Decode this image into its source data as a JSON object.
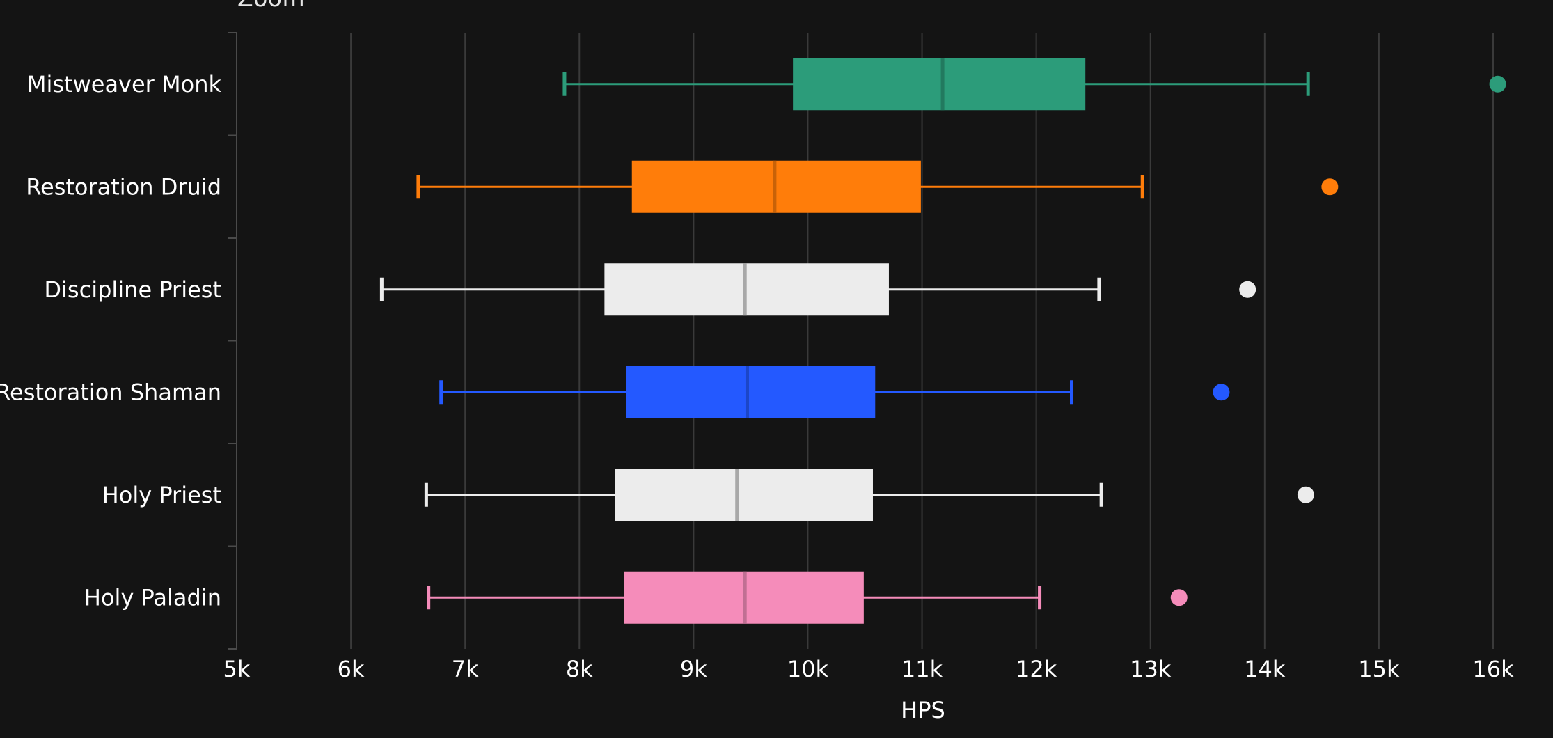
{
  "zoom_label": "Zoom",
  "chart_data": {
    "type": "boxplot",
    "orientation": "horizontal",
    "xlabel": "HPS",
    "ylabel": "",
    "xlim": [
      5000,
      16000
    ],
    "x_ticks": [
      5000,
      6000,
      7000,
      8000,
      9000,
      10000,
      11000,
      12000,
      13000,
      14000,
      15000,
      16000
    ],
    "x_tick_labels": [
      "5k",
      "6k",
      "7k",
      "8k",
      "9k",
      "10k",
      "11k",
      "12k",
      "13k",
      "14k",
      "15k",
      "16k"
    ],
    "grid": "vertical",
    "categories": [
      {
        "name": "Mistweaver Monk",
        "color": "#2c9c7a",
        "median_color": "#22795f",
        "whisker_low": 7870,
        "q1": 9870,
        "median": 11180,
        "q3": 12430,
        "whisker_high": 14380,
        "outlier": 16040
      },
      {
        "name": "Restoration Druid",
        "color": "#ff7d0a",
        "median_color": "#c86208",
        "whisker_low": 6590,
        "q1": 8460,
        "median": 9710,
        "q3": 10990,
        "whisker_high": 12930,
        "outlier": 14570
      },
      {
        "name": "Discipline Priest",
        "color": "#ececec",
        "median_color": "#a8a8a8",
        "whisker_low": 6270,
        "q1": 8220,
        "median": 9450,
        "q3": 10710,
        "whisker_high": 12550,
        "outlier": 13850
      },
      {
        "name": "Restoration Shaman",
        "color": "#2459ff",
        "median_color": "#1c46c8",
        "whisker_low": 6790,
        "q1": 8410,
        "median": 9470,
        "q3": 10590,
        "whisker_high": 12310,
        "outlier": 13620
      },
      {
        "name": "Holy Priest",
        "color": "#ececec",
        "median_color": "#a8a8a8",
        "whisker_low": 6660,
        "q1": 8310,
        "median": 9380,
        "q3": 10570,
        "whisker_high": 12570,
        "outlier": 14360
      },
      {
        "name": "Holy Paladin",
        "color": "#f58cba",
        "median_color": "#c06f93",
        "whisker_low": 6680,
        "q1": 8390,
        "median": 9450,
        "q3": 10490,
        "whisker_high": 12030,
        "outlier": 13250
      }
    ]
  }
}
